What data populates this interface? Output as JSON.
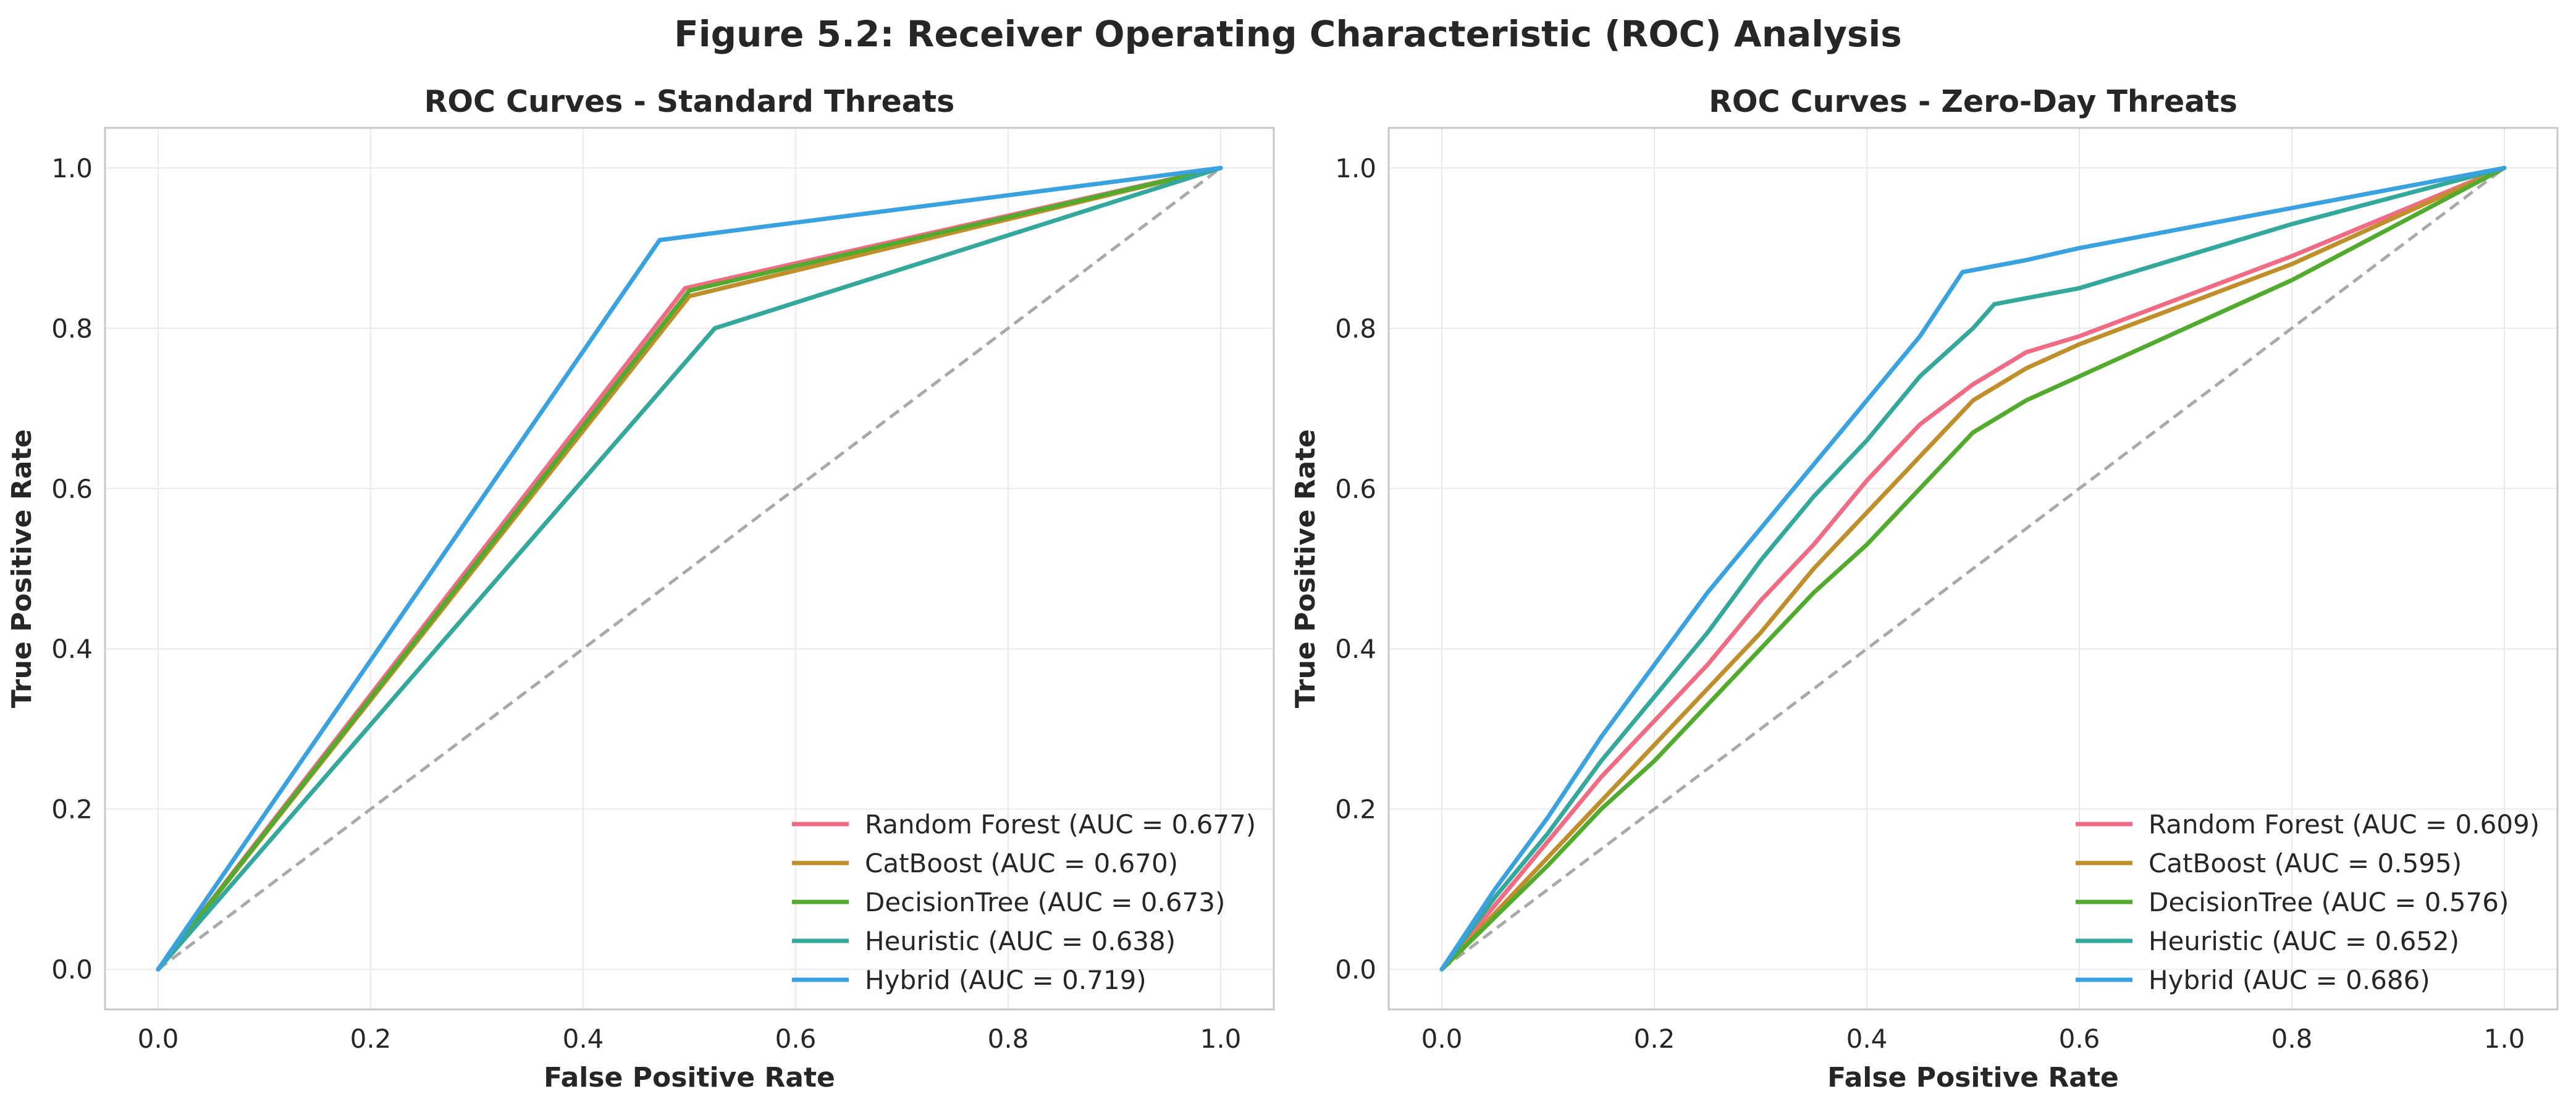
{
  "figure": {
    "title": "Figure 5.2: Receiver Operating Characteristic (ROC) Analysis"
  },
  "colors": {
    "Random Forest": "#f06b84",
    "CatBoost": "#bf8f2c",
    "DecisionTree": "#52ab2e",
    "Heuristic": "#33a89b",
    "Hybrid": "#3ba2e0",
    "chance": "#a9a9a9",
    "grid": "#ebebeb",
    "frame": "#c8c8c8"
  },
  "chart_data": [
    {
      "type": "line",
      "title": "ROC Curves - Standard Threats",
      "xlabel": "False Positive Rate",
      "ylabel": "True Positive Rate",
      "xlim": [
        -0.05,
        1.05
      ],
      "ylim": [
        -0.05,
        1.05
      ],
      "xticks": [
        0.0,
        0.2,
        0.4,
        0.6,
        0.8,
        1.0
      ],
      "yticks": [
        0.0,
        0.2,
        0.4,
        0.6,
        0.8,
        1.0
      ],
      "tick_labels": [
        "0.0",
        "0.2",
        "0.4",
        "0.6",
        "0.8",
        "1.0"
      ],
      "grid": true,
      "legend_position": "lower-right",
      "chance_line": [
        [
          0,
          0
        ],
        [
          1,
          1
        ]
      ],
      "series": [
        {
          "name": "Random Forest",
          "label": "Random Forest (AUC = 0.677)",
          "points": [
            [
              0,
              0
            ],
            [
              0.496,
              0.85
            ],
            [
              1,
              1
            ]
          ]
        },
        {
          "name": "CatBoost",
          "label": "CatBoost (AUC = 0.670)",
          "points": [
            [
              0,
              0
            ],
            [
              0.5,
              0.84
            ],
            [
              1,
              1
            ]
          ]
        },
        {
          "name": "DecisionTree",
          "label": "DecisionTree (AUC = 0.673)",
          "points": [
            [
              0,
              0
            ],
            [
              0.5,
              0.847
            ],
            [
              1,
              1
            ]
          ]
        },
        {
          "name": "Heuristic",
          "label": "Heuristic (AUC = 0.638)",
          "points": [
            [
              0,
              0
            ],
            [
              0.524,
              0.8
            ],
            [
              1,
              1
            ]
          ]
        },
        {
          "name": "Hybrid",
          "label": "Hybrid (AUC = 0.719)",
          "points": [
            [
              0,
              0
            ],
            [
              0.472,
              0.91
            ],
            [
              1,
              1
            ]
          ]
        }
      ]
    },
    {
      "type": "line",
      "title": "ROC Curves - Zero-Day Threats",
      "xlabel": "False Positive Rate",
      "ylabel": "True Positive Rate",
      "xlim": [
        -0.05,
        1.05
      ],
      "ylim": [
        -0.05,
        1.05
      ],
      "xticks": [
        0.0,
        0.2,
        0.4,
        0.6,
        0.8,
        1.0
      ],
      "yticks": [
        0.0,
        0.2,
        0.4,
        0.6,
        0.8,
        1.0
      ],
      "tick_labels": [
        "0.0",
        "0.2",
        "0.4",
        "0.6",
        "0.8",
        "1.0"
      ],
      "grid": true,
      "legend_position": "lower-right",
      "chance_line": [
        [
          0,
          0
        ],
        [
          1,
          1
        ]
      ],
      "series": [
        {
          "name": "Random Forest",
          "label": "Random Forest (AUC = 0.609)",
          "points": [
            [
              0,
              0
            ],
            [
              0.05,
              0.08
            ],
            [
              0.1,
              0.16
            ],
            [
              0.15,
              0.24
            ],
            [
              0.2,
              0.31
            ],
            [
              0.25,
              0.38
            ],
            [
              0.3,
              0.46
            ],
            [
              0.35,
              0.53
            ],
            [
              0.4,
              0.61
            ],
            [
              0.45,
              0.68
            ],
            [
              0.5,
              0.73
            ],
            [
              0.55,
              0.77
            ],
            [
              0.6,
              0.79
            ],
            [
              0.7,
              0.84
            ],
            [
              0.8,
              0.89
            ],
            [
              0.9,
              0.945
            ],
            [
              1,
              1
            ]
          ]
        },
        {
          "name": "CatBoost",
          "label": "CatBoost (AUC = 0.595)",
          "points": [
            [
              0,
              0
            ],
            [
              0.05,
              0.07
            ],
            [
              0.1,
              0.14
            ],
            [
              0.15,
              0.21
            ],
            [
              0.2,
              0.28
            ],
            [
              0.25,
              0.35
            ],
            [
              0.3,
              0.42
            ],
            [
              0.35,
              0.5
            ],
            [
              0.4,
              0.57
            ],
            [
              0.45,
              0.64
            ],
            [
              0.5,
              0.71
            ],
            [
              0.55,
              0.75
            ],
            [
              0.6,
              0.78
            ],
            [
              0.7,
              0.83
            ],
            [
              0.8,
              0.88
            ],
            [
              0.9,
              0.94
            ],
            [
              1,
              1
            ]
          ]
        },
        {
          "name": "DecisionTree",
          "label": "DecisionTree (AUC = 0.576)",
          "points": [
            [
              0,
              0
            ],
            [
              0.05,
              0.065
            ],
            [
              0.1,
              0.13
            ],
            [
              0.15,
              0.2
            ],
            [
              0.2,
              0.26
            ],
            [
              0.25,
              0.33
            ],
            [
              0.3,
              0.4
            ],
            [
              0.35,
              0.47
            ],
            [
              0.4,
              0.53
            ],
            [
              0.45,
              0.6
            ],
            [
              0.5,
              0.67
            ],
            [
              0.55,
              0.71
            ],
            [
              0.6,
              0.74
            ],
            [
              0.7,
              0.8
            ],
            [
              0.8,
              0.86
            ],
            [
              0.9,
              0.93
            ],
            [
              1,
              1
            ]
          ]
        },
        {
          "name": "Heuristic",
          "label": "Heuristic (AUC = 0.652)",
          "points": [
            [
              0,
              0
            ],
            [
              0.05,
              0.09
            ],
            [
              0.1,
              0.17
            ],
            [
              0.15,
              0.26
            ],
            [
              0.2,
              0.34
            ],
            [
              0.25,
              0.42
            ],
            [
              0.3,
              0.51
            ],
            [
              0.35,
              0.59
            ],
            [
              0.4,
              0.66
            ],
            [
              0.45,
              0.74
            ],
            [
              0.5,
              0.8
            ],
            [
              0.52,
              0.83
            ],
            [
              0.6,
              0.85
            ],
            [
              0.7,
              0.89
            ],
            [
              0.8,
              0.93
            ],
            [
              0.9,
              0.965
            ],
            [
              1,
              1
            ]
          ]
        },
        {
          "name": "Hybrid",
          "label": "Hybrid (AUC = 0.686)",
          "points": [
            [
              0,
              0
            ],
            [
              0.05,
              0.1
            ],
            [
              0.1,
              0.19
            ],
            [
              0.15,
              0.29
            ],
            [
              0.2,
              0.38
            ],
            [
              0.25,
              0.47
            ],
            [
              0.3,
              0.55
            ],
            [
              0.35,
              0.63
            ],
            [
              0.4,
              0.71
            ],
            [
              0.45,
              0.79
            ],
            [
              0.49,
              0.87
            ],
            [
              0.55,
              0.885
            ],
            [
              0.6,
              0.9
            ],
            [
              0.7,
              0.925
            ],
            [
              0.8,
              0.95
            ],
            [
              0.9,
              0.975
            ],
            [
              1,
              1
            ]
          ]
        }
      ]
    }
  ]
}
